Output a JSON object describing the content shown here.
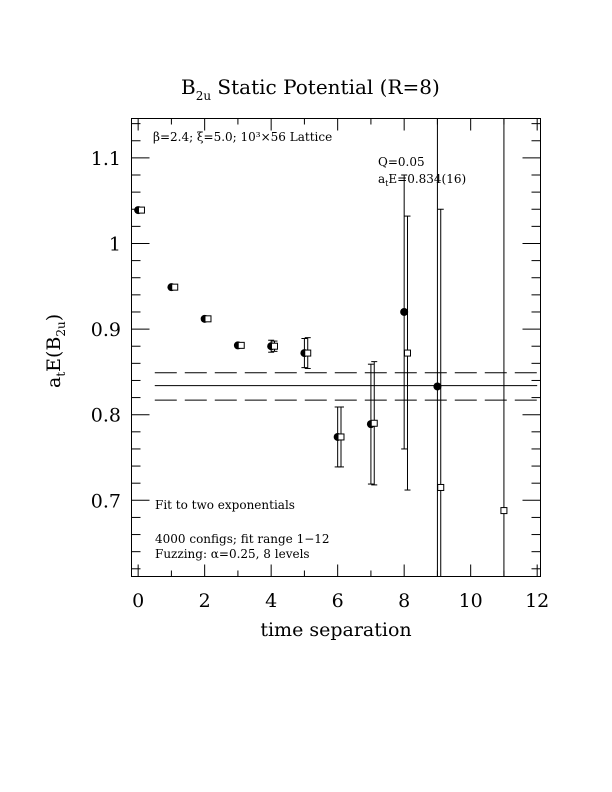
{
  "chart_data": {
    "type": "scatter",
    "title_main": "B",
    "title_sub": "2u",
    "title_rest": " Static Potential (R=8)",
    "xlabel": "time separation",
    "ylabel_pre": "a",
    "ylabel_sub1": "t",
    "ylabel_mid": "E(B",
    "ylabel_sub2": "2u",
    "ylabel_post": ")",
    "xlim": [
      -0.2,
      12.1
    ],
    "ylim": [
      0.611,
      1.146
    ],
    "xticks": [
      0,
      2,
      4,
      6,
      8,
      10,
      12
    ],
    "xtick_labels": [
      "0",
      "2",
      "4",
      "6",
      "8",
      "10",
      "12"
    ],
    "yticks": [
      0.7,
      0.8,
      0.9,
      1.0,
      1.1
    ],
    "ytick_labels": [
      "0.7",
      "0.8",
      "0.9",
      "1",
      "1.1"
    ],
    "annotations": {
      "lattice": "β=2.4; ξ=5.0; 10³×56 Lattice",
      "q": "Q=0.05",
      "energy_pre": "a",
      "energy_sub": "t",
      "energy_post": "E=0.834(16)",
      "fit": "Fit to two exponentials",
      "configs": "4000 configs; fit range 1−12",
      "fuzzing": "Fuzzing: α=0.25, 8 levels"
    },
    "fit": {
      "value": 0.834,
      "upper": 0.849,
      "lower": 0.817,
      "x_range": [
        0.5,
        12.0
      ]
    },
    "series": [
      {
        "marker": "filled-circle",
        "points": [
          {
            "x": 0,
            "y": 1.039,
            "err": 0.003
          },
          {
            "x": 1,
            "y": 0.949,
            "err": 0.003
          },
          {
            "x": 2,
            "y": 0.912,
            "err": 0.003
          },
          {
            "x": 3,
            "y": 0.881,
            "err": 0.003
          },
          {
            "x": 4,
            "y": 0.88,
            "err": 0.007
          },
          {
            "x": 5,
            "y": 0.872,
            "err": 0.017
          },
          {
            "x": 6,
            "y": 0.774,
            "err": 0.035
          },
          {
            "x": 7,
            "y": 0.789,
            "err": 0.07
          },
          {
            "x": 8,
            "y": 0.92,
            "err": 0.16
          },
          {
            "x": 9,
            "y": 0.833,
            "err": 0.5
          }
        ]
      },
      {
        "marker": "open-square",
        "points": [
          {
            "x": 0.1,
            "y": 1.039,
            "err": 0.002
          },
          {
            "x": 1.1,
            "y": 0.949,
            "err": 0.002
          },
          {
            "x": 2.1,
            "y": 0.912,
            "err": 0.002
          },
          {
            "x": 3.1,
            "y": 0.881,
            "err": 0.002
          },
          {
            "x": 4.1,
            "y": 0.88,
            "err": 0.006
          },
          {
            "x": 5.1,
            "y": 0.872,
            "err": 0.018
          },
          {
            "x": 6.1,
            "y": 0.774,
            "err": 0.035
          },
          {
            "x": 7.1,
            "y": 0.79,
            "err": 0.072
          },
          {
            "x": 8.1,
            "y": 0.872,
            "err": 0.16
          },
          {
            "x": 9.1,
            "y": 0.715,
            "err": 0.325
          },
          {
            "x": 11.0,
            "y": 0.688,
            "err": 0.9
          }
        ]
      }
    ]
  }
}
